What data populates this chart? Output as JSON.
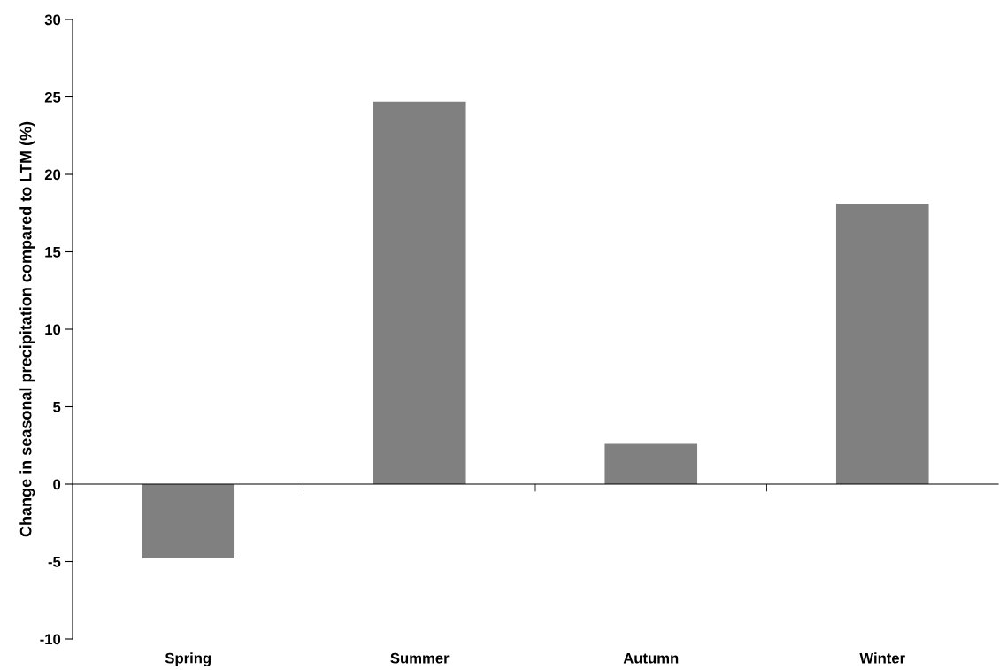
{
  "chart_data": {
    "type": "bar",
    "ylabel": "Change in seasonal precipitation compared to LTM (%)",
    "categories": [
      "Spring",
      "Summer",
      "Autumn",
      "Winter"
    ],
    "values": [
      -4.8,
      24.7,
      2.6,
      18.1
    ],
    "color": "#808080",
    "ylim": [
      -10,
      30
    ],
    "yticks": [
      -10,
      -5,
      0,
      5,
      10,
      15,
      20,
      25,
      30
    ],
    "legend": false
  }
}
